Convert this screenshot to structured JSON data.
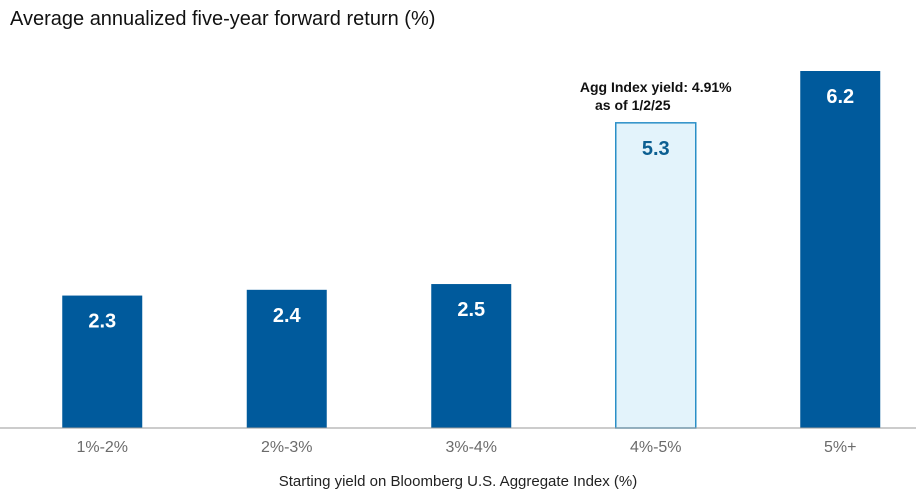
{
  "chart_data": {
    "type": "bar",
    "title": "Average annualized five-year forward return (%)",
    "xlabel": "Starting yield on Bloomberg U.S. Aggregate Index (%)",
    "ylabel": "",
    "categories": [
      "1%-2%",
      "2%-3%",
      "3%-4%",
      "4%-5%",
      "5%+"
    ],
    "values": [
      2.3,
      2.4,
      2.5,
      5.3,
      6.2
    ],
    "ylim": [
      0,
      6.2
    ],
    "highlight_index": 3,
    "grid": false,
    "annotation": {
      "line1": "Agg Index yield: 4.91%",
      "line2": "as of 1/2/25",
      "category_index": 3
    },
    "colors": {
      "bar": "#005a9c",
      "highlight_fill": "#e3f3fb",
      "highlight_stroke": "#2a8fc7",
      "highlight_text": "#0b5e91",
      "value_text": "#ffffff",
      "axis": "#9a9a9a"
    }
  }
}
